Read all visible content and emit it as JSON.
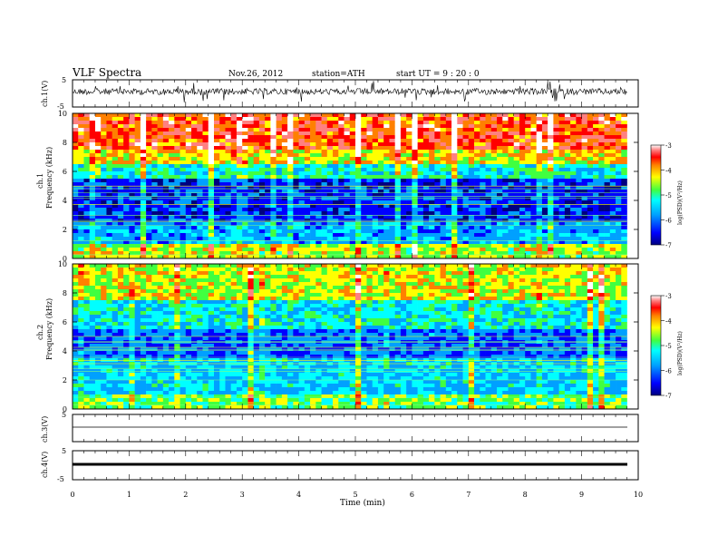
{
  "header": {
    "title": "VLF  Spectra",
    "date": "Nov.26, 2012",
    "station": "station=ATH",
    "start": "start  UT  =   9 : 20 : 0"
  },
  "chart_data": [
    {
      "type": "line",
      "panel": "ch1-waveform",
      "ylabel": "ch.1(V)",
      "yticks": [
        "5",
        "-5"
      ],
      "ylim": [
        -5,
        5
      ],
      "xlim": [
        0,
        10
      ],
      "note_values": "dense noisy waveform, amplitude mostly within about -1 to 1 V with frequent spikes"
    },
    {
      "type": "heatmap",
      "panel": "ch1-spectrogram",
      "ylabel_top": "ch.1",
      "ylabel": "Frequency  (kHz)",
      "yticks": [
        "0",
        "2",
        "4",
        "6",
        "8",
        "10"
      ],
      "ylim": [
        0,
        10
      ],
      "xlim": [
        0,
        9.8
      ],
      "colorbar": {
        "label": "log(PSD)(V²/Hz)",
        "ticks": [
          "-3",
          "-4",
          "-5",
          "-6",
          "-7"
        ],
        "range": [
          -7,
          -3
        ]
      },
      "bands_log_psd": [
        {
          "f_from": 0,
          "f_to": 1,
          "value": -4.5
        },
        {
          "f_from": 1,
          "f_to": 2.5,
          "value": -5.8
        },
        {
          "f_from": 2.5,
          "f_to": 5.5,
          "value": -6.4
        },
        {
          "f_from": 5.5,
          "f_to": 6.5,
          "value": -5.2
        },
        {
          "f_from": 6.5,
          "f_to": 7.5,
          "value": -4.2
        },
        {
          "f_from": 7.5,
          "f_to": 10,
          "value": -3.6
        }
      ]
    },
    {
      "type": "heatmap",
      "panel": "ch2-spectrogram",
      "ylabel_top": "ch.2",
      "ylabel": "Frequency  (kHz)",
      "yticks": [
        "0",
        "2",
        "4",
        "6",
        "8",
        "10"
      ],
      "ylim": [
        0,
        10
      ],
      "xlim": [
        0,
        9.8
      ],
      "colorbar": {
        "label": "log(PSD)(V²/Hz)",
        "ticks": [
          "-3",
          "-4",
          "-5",
          "-6",
          "-7"
        ],
        "range": [
          -7,
          -3
        ]
      },
      "bands_log_psd": [
        {
          "f_from": 0,
          "f_to": 1,
          "value": -4.8
        },
        {
          "f_from": 1,
          "f_to": 3.5,
          "value": -5.5
        },
        {
          "f_from": 3.5,
          "f_to": 5.5,
          "value": -6.1
        },
        {
          "f_from": 5.5,
          "f_to": 7.5,
          "value": -5.3
        },
        {
          "f_from": 7.5,
          "f_to": 10,
          "value": -4.4
        }
      ]
    },
    {
      "type": "line",
      "panel": "ch3-waveform",
      "ylabel": "ch.3(V)",
      "yticks": [
        "5",
        "-5"
      ],
      "ylim": [
        -5,
        5
      ],
      "xlim": [
        0,
        10
      ],
      "note_values": "flat trace near 0 V"
    },
    {
      "type": "line",
      "panel": "ch4-waveform",
      "ylabel": "ch.4(V)",
      "yticks": [
        "5",
        "-5"
      ],
      "ylim": [
        -5,
        5
      ],
      "xlim": [
        0,
        10
      ],
      "note_values": "thick flat trace near 0 V"
    }
  ],
  "x_axis": {
    "xlabel": "Time  (min)",
    "ticks": [
      "0",
      "1",
      "2",
      "3",
      "4",
      "5",
      "6",
      "7",
      "8",
      "9",
      "10"
    ],
    "xlim": [
      0,
      10
    ]
  },
  "colors": {
    "jet": [
      "#000080",
      "#0000ff",
      "#0080ff",
      "#00ffff",
      "#80ff80",
      "#ffff00",
      "#ff8000",
      "#ff0000",
      "#ffffff"
    ]
  }
}
